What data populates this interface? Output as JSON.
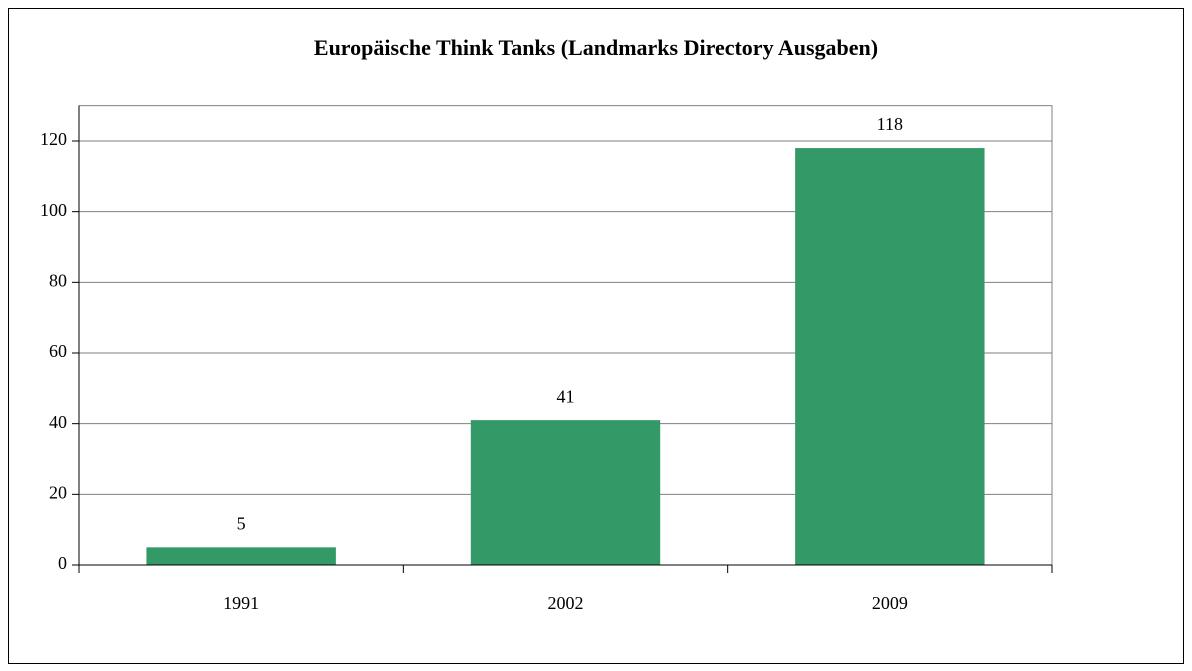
{
  "chart_data": {
    "type": "bar",
    "title": "Europäische Think Tanks (Landmarks Directory Ausgaben)",
    "categories": [
      "1991",
      "2002",
      "2009"
    ],
    "values": [
      5,
      41,
      118
    ],
    "color": "#339966",
    "ylim": [
      0,
      130
    ],
    "yticks": [
      0,
      20,
      40,
      60,
      80,
      100,
      120
    ],
    "grid": true
  }
}
